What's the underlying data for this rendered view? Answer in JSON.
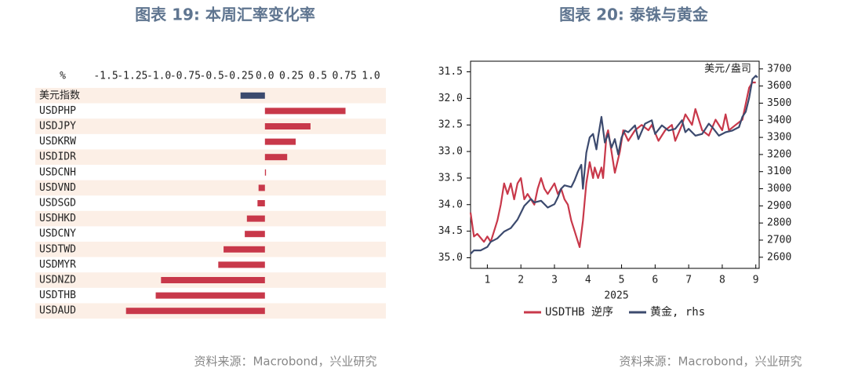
{
  "chart_data": [
    {
      "type": "bar",
      "orientation": "horizontal",
      "title": "图表 19: 本周汇率变化率",
      "xlabel": "%",
      "categories": [
        "美元指数",
        "USDPHP",
        "USDJPY",
        "USDKRW",
        "USDIDR",
        "USDCNH",
        "USDVND",
        "USDSGD",
        "USDHKD",
        "USDCNY",
        "USDTWD",
        "USDMYR",
        "USDNZD",
        "USDTHB",
        "USDAUD"
      ],
      "values": [
        -0.23,
        0.76,
        0.43,
        0.29,
        0.21,
        0.01,
        -0.06,
        -0.07,
        -0.17,
        -0.19,
        -0.39,
        -0.44,
        -0.98,
        -1.03,
        -1.31
      ],
      "colors": [
        "#3c4a6e",
        "#c8384a",
        "#c8384a",
        "#c8384a",
        "#c8384a",
        "#c8384a",
        "#c8384a",
        "#c8384a",
        "#c8384a",
        "#c8384a",
        "#c8384a",
        "#c8384a",
        "#c8384a",
        "#c8384a",
        "#c8384a"
      ],
      "xlim": [
        -1.5,
        1.0
      ],
      "xticks": [
        -1.5,
        -1.25,
        {
          "value": -1,
          "label": "-1.0"
        },
        -0.75,
        -0.5,
        -0.25,
        {
          "value": 0,
          "label": "0.0"
        },
        0.25,
        0.5,
        0.75,
        {
          "value": 1,
          "label": "1.0"
        }
      ],
      "source": "资料来源：Macrobond，兴业研究"
    },
    {
      "type": "line",
      "title": "图表 20: 泰铢与黄金",
      "xlabel": "2025",
      "y2label": "美元/盎司",
      "xlim": [
        0.5,
        9.1
      ],
      "xticks": [
        1,
        2,
        3,
        4,
        5,
        6,
        7,
        8,
        9
      ],
      "ylim": [
        35.2,
        31.3
      ],
      "yticks": [
        31.5,
        {
          "value": 32,
          "label": "32.0"
        },
        32.5,
        {
          "value": 33,
          "label": "33.0"
        },
        33.5,
        {
          "value": 34,
          "label": "34.0"
        },
        34.5,
        {
          "value": 35,
          "label": "35.0"
        }
      ],
      "y2lim": [
        2535,
        3745
      ],
      "y2ticks": [
        2600,
        2700,
        2800,
        2900,
        3000,
        3100,
        3200,
        3300,
        3400,
        3500,
        3600,
        3700
      ],
      "series": [
        {
          "name": "USDTHB 逆序",
          "color": "#c8384a",
          "x": [
            0.5,
            0.6,
            0.7,
            0.9,
            1.0,
            1.1,
            1.2,
            1.3,
            1.4,
            1.5,
            1.6,
            1.7,
            1.8,
            1.9,
            2.0,
            2.1,
            2.2,
            2.3,
            2.4,
            2.5,
            2.6,
            2.7,
            2.8,
            3.0,
            3.1,
            3.2,
            3.3,
            3.4,
            3.5,
            3.6,
            3.75,
            3.85,
            3.95,
            4.05,
            4.15,
            4.2,
            4.3,
            4.4,
            4.45,
            4.55,
            4.6,
            4.7,
            4.8,
            4.95,
            5.05,
            5.2,
            5.4,
            5.6,
            5.8,
            5.9,
            6.1,
            6.3,
            6.5,
            6.6,
            6.8,
            6.9,
            7.1,
            7.2,
            7.4,
            7.6,
            7.8,
            8.0,
            8.1,
            8.2,
            8.4,
            8.6,
            8.7,
            8.8,
            8.9,
            9.0
          ],
          "values": [
            34.15,
            34.6,
            34.55,
            34.7,
            34.6,
            34.7,
            34.5,
            34.3,
            34.0,
            33.6,
            33.8,
            33.6,
            33.9,
            33.6,
            33.5,
            33.9,
            33.8,
            33.9,
            34.0,
            33.7,
            33.5,
            33.7,
            33.8,
            33.6,
            33.8,
            33.7,
            33.9,
            34.0,
            34.3,
            34.5,
            34.8,
            34.3,
            33.6,
            33.2,
            33.5,
            33.3,
            33.5,
            33.3,
            33.5,
            32.7,
            32.6,
            33.0,
            33.4,
            33.0,
            32.6,
            32.8,
            32.6,
            32.5,
            32.6,
            32.5,
            32.8,
            32.6,
            32.5,
            32.8,
            32.5,
            32.3,
            32.5,
            32.2,
            32.6,
            32.7,
            32.4,
            32.6,
            32.3,
            32.6,
            32.5,
            32.4,
            32.1,
            31.8,
            31.7,
            31.7
          ]
        },
        {
          "name": "黄金, rhs",
          "color": "#3c4a6e",
          "axis": "y2",
          "x": [
            0.5,
            0.6,
            0.8,
            1.0,
            1.1,
            1.3,
            1.5,
            1.7,
            1.9,
            2.0,
            2.1,
            2.3,
            2.4,
            2.6,
            2.8,
            3.0,
            3.1,
            3.2,
            3.3,
            3.5,
            3.6,
            3.7,
            3.8,
            3.85,
            3.95,
            4.05,
            4.15,
            4.25,
            4.3,
            4.4,
            4.5,
            4.6,
            4.7,
            4.8,
            4.9,
            5.0,
            5.1,
            5.2,
            5.4,
            5.5,
            5.7,
            5.9,
            6.0,
            6.2,
            6.4,
            6.6,
            6.8,
            6.9,
            7.0,
            7.2,
            7.4,
            7.6,
            7.7,
            7.9,
            8.1,
            8.3,
            8.5,
            8.6,
            8.7,
            8.8,
            8.9,
            9.0,
            9.05
          ],
          "values": [
            2620,
            2640,
            2640,
            2660,
            2690,
            2710,
            2750,
            2770,
            2820,
            2860,
            2900,
            2940,
            2920,
            2930,
            2890,
            2910,
            2950,
            3000,
            3020,
            3010,
            3050,
            3100,
            3140,
            3000,
            3210,
            3300,
            3320,
            3230,
            3300,
            3420,
            3270,
            3320,
            3240,
            3290,
            3200,
            3300,
            3340,
            3330,
            3370,
            3290,
            3380,
            3400,
            3320,
            3370,
            3340,
            3350,
            3400,
            3330,
            3350,
            3310,
            3320,
            3380,
            3360,
            3310,
            3330,
            3340,
            3360,
            3420,
            3450,
            3530,
            3640,
            3660,
            3650
          ]
        }
      ],
      "source": "资料来源：Macrobond，兴业研究"
    }
  ]
}
